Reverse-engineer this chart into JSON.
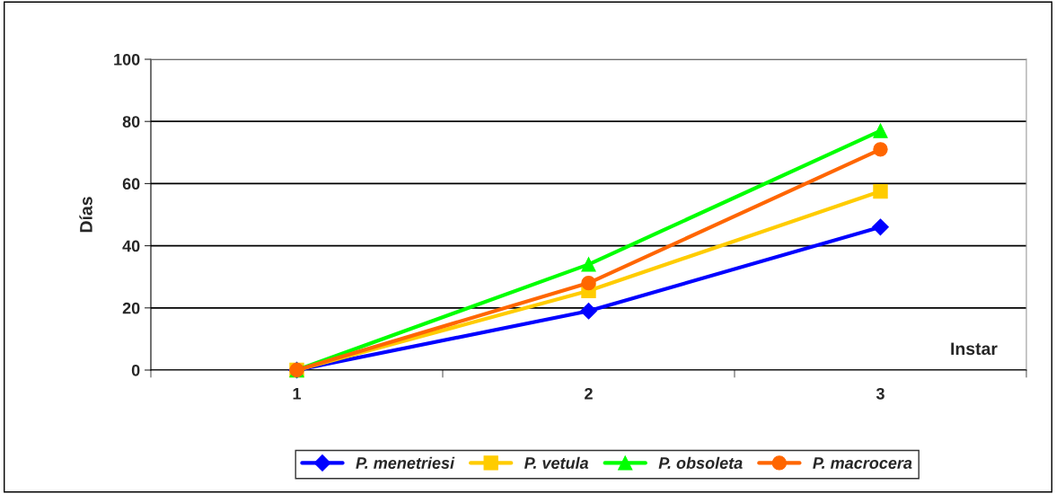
{
  "chart_data": {
    "type": "line",
    "xlabel": "Instar",
    "ylabel": "Días",
    "categories": [
      "1",
      "2",
      "3"
    ],
    "series": [
      {
        "name": "P. menetriesi",
        "color": "#0000ff",
        "marker": "diamond",
        "values": [
          0,
          19,
          46
        ]
      },
      {
        "name": "P. vetula",
        "color": "#ffcc00",
        "marker": "square",
        "values": [
          0,
          25.5,
          57.5
        ]
      },
      {
        "name": "P. obsoleta",
        "color": "#00ff00",
        "marker": "triangle",
        "values": [
          0,
          34,
          77
        ]
      },
      {
        "name": "P. macrocera",
        "color": "#ff6600",
        "marker": "circle",
        "values": [
          0,
          28,
          71
        ]
      }
    ],
    "ylim": [
      0,
      100
    ],
    "yticks": [
      0,
      20,
      40,
      60,
      80,
      100
    ],
    "grid": "y",
    "legend": "bottom",
    "line_style": "solid"
  }
}
